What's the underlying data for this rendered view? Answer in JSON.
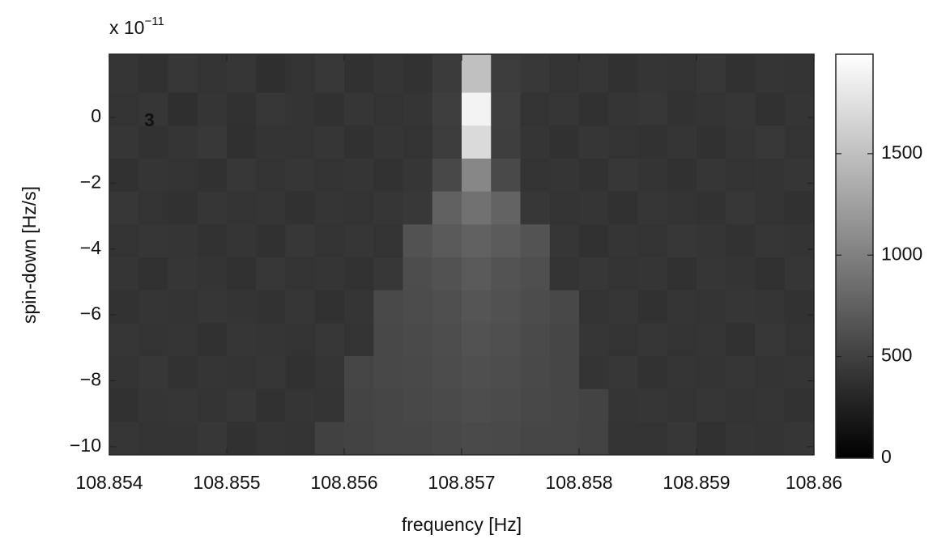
{
  "chart_data": {
    "type": "heatmap",
    "x_label": "frequency [Hz]",
    "y_label": "spin-down [Hz/s]",
    "y_multiplier": "x 10",
    "y_exponent": "−11",
    "annotation": "3",
    "annotation_color": "#e8140c",
    "colormap": "gray",
    "xlim": [
      108.854,
      108.86
    ],
    "xticks": [
      108.854,
      108.855,
      108.856,
      108.857,
      108.858,
      108.859,
      108.86
    ],
    "ylim": [
      -10.25,
      1.92
    ],
    "yticks": [
      {
        "value": -10,
        "label": "−10"
      },
      {
        "value": -8,
        "label": "−8"
      },
      {
        "value": -6,
        "label": "−6"
      },
      {
        "value": -4,
        "label": "−4"
      },
      {
        "value": -2,
        "label": "−2"
      },
      0
    ],
    "zlim": [
      0,
      1990
    ],
    "zticks": [
      0,
      500,
      1000,
      1500
    ],
    "x": [
      108.854125,
      108.854375,
      108.854625,
      108.854875,
      108.855125,
      108.855375,
      108.855625,
      108.855875,
      108.856125,
      108.856375,
      108.856625,
      108.856875,
      108.857125,
      108.857375,
      108.857625,
      108.857875,
      108.858125,
      108.858375,
      108.858625,
      108.858875,
      108.859125,
      108.859375,
      108.859625,
      108.859875
    ],
    "y": [
      1.25,
      0.25,
      -0.75,
      -1.75,
      -2.75,
      -3.75,
      -4.75,
      -5.75,
      -6.75,
      -7.75,
      -8.75,
      -9.75
    ],
    "z": [
      [
        410,
        380,
        430,
        395,
        420,
        370,
        400,
        440,
        385,
        415,
        390,
        460,
        1500,
        470,
        435,
        400,
        420,
        385,
        410,
        395,
        430,
        380,
        415,
        400
      ],
      [
        395,
        420,
        370,
        410,
        385,
        430,
        405,
        380,
        425,
        400,
        415,
        480,
        1900,
        490,
        395,
        420,
        380,
        410,
        430,
        390,
        405,
        425,
        385,
        410
      ],
      [
        420,
        390,
        410,
        440,
        375,
        405,
        395,
        425,
        380,
        410,
        400,
        470,
        1700,
        480,
        410,
        385,
        425,
        400,
        390,
        415,
        380,
        410,
        435,
        395
      ],
      [
        385,
        415,
        400,
        380,
        430,
        395,
        420,
        400,
        410,
        390,
        420,
        560,
        1050,
        570,
        400,
        415,
        390,
        430,
        405,
        385,
        420,
        395,
        405,
        425
      ],
      [
        430,
        395,
        385,
        420,
        400,
        415,
        380,
        410,
        395,
        425,
        440,
        760,
        880,
        770,
        430,
        395,
        410,
        385,
        420,
        400,
        390,
        430,
        400,
        380
      ],
      [
        400,
        425,
        410,
        390,
        415,
        385,
        430,
        395,
        420,
        400,
        640,
        700,
        760,
        710,
        650,
        420,
        385,
        415,
        395,
        430,
        410,
        390,
        420,
        405
      ],
      [
        415,
        385,
        420,
        405,
        380,
        430,
        400,
        410,
        390,
        430,
        600,
        640,
        700,
        650,
        610,
        400,
        430,
        395,
        410,
        385,
        420,
        405,
        380,
        425
      ],
      [
        390,
        410,
        395,
        425,
        405,
        390,
        420,
        385,
        415,
        570,
        590,
        620,
        660,
        630,
        590,
        560,
        400,
        420,
        385,
        410,
        395,
        425,
        410,
        390
      ],
      [
        425,
        400,
        415,
        385,
        420,
        410,
        395,
        430,
        400,
        560,
        580,
        600,
        640,
        610,
        580,
        550,
        420,
        395,
        425,
        400,
        415,
        385,
        430,
        400
      ],
      [
        405,
        430,
        390,
        410,
        395,
        425,
        385,
        410,
        540,
        560,
        570,
        590,
        620,
        600,
        570,
        550,
        405,
        430,
        390,
        415,
        400,
        420,
        395,
        415
      ],
      [
        380,
        410,
        425,
        400,
        430,
        385,
        415,
        400,
        530,
        545,
        560,
        575,
        600,
        585,
        560,
        545,
        520,
        410,
        420,
        395,
        425,
        400,
        410,
        390
      ],
      [
        420,
        395,
        405,
        430,
        385,
        415,
        400,
        510,
        520,
        535,
        550,
        560,
        580,
        570,
        550,
        535,
        520,
        400,
        395,
        430,
        385,
        415,
        400,
        420
      ]
    ]
  }
}
